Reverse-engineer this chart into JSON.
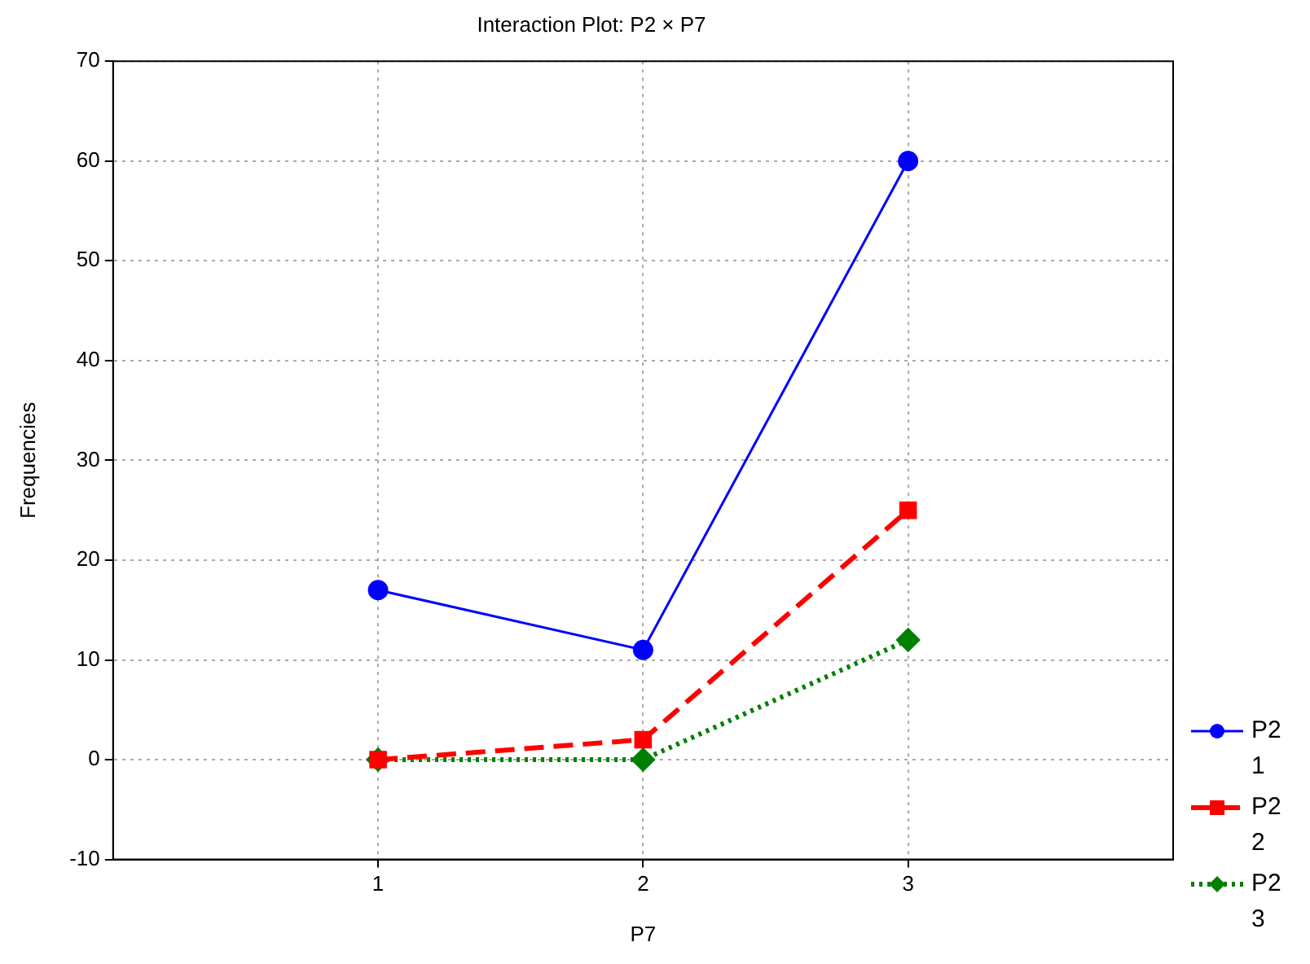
{
  "chart_data": {
    "type": "line",
    "title": "Interaction Plot: P2 × P7",
    "xlabel": "P7",
    "ylabel": "Frequencies",
    "x": [
      1,
      2,
      3
    ],
    "xlim": [
      0,
      4
    ],
    "xticks": [
      1,
      2,
      3
    ],
    "ylim": [
      -10,
      70
    ],
    "yticks": [
      -10,
      0,
      10,
      20,
      30,
      40,
      50,
      60,
      70
    ],
    "grid": true,
    "legend": "bottom right",
    "series": [
      {
        "name": "P2 1",
        "color": "#0000ff",
        "values": [
          17,
          11,
          60
        ],
        "marker": "circle",
        "line_style": "solid"
      },
      {
        "name": "P2 2",
        "color": "#ff0000",
        "values": [
          0,
          2,
          25
        ],
        "marker": "square",
        "line_style": "dashed"
      },
      {
        "name": "P2 3",
        "color": "#008000",
        "values": [
          0,
          0,
          12
        ],
        "marker": "diamond",
        "line_style": "dotted"
      }
    ]
  }
}
